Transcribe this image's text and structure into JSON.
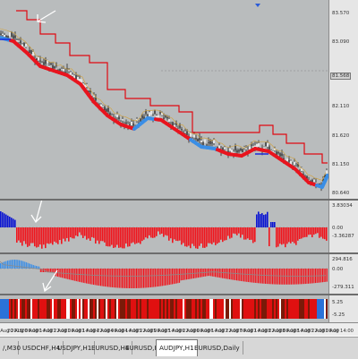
{
  "price_axis": {
    "labels": [
      "83.570",
      "83.090",
      "82.620",
      "82.110",
      "81.620",
      "81.150",
      "80.640"
    ],
    "current_price": "81.568"
  },
  "histogram_axis": {
    "labels": [
      "3.83034",
      "0.00",
      "-3.36287"
    ]
  },
  "macd_axis": {
    "labels": [
      "294.816",
      "0.00",
      "-279.311"
    ]
  },
  "strip_axis": {
    "labels": [
      "5.25",
      "-5.25"
    ]
  },
  "time_axis": {
    "labels": [
      "20 Aug 2015",
      "20 Aug 06:00",
      "20 Aug 14:00",
      "20 Aug 22:00",
      "21 Aug 06:00",
      "21 Aug 14:00",
      "21 Aug 22:00",
      "24 Aug 06:00",
      "24 Aug 14:00",
      "24 Aug 22:00",
      "25 Aug 06:00",
      "25 Aug 14:00",
      "25 Aug 22:00",
      "26 Aug 06:00",
      "26 Aug 14:00",
      "26 Aug 22:00",
      "27 Aug 06:00",
      "27 Aug 14:00",
      "27 Aug 22:00",
      "28 Aug 06:00",
      "28 Aug 14:00",
      "28 Aug 22:00",
      "31 Aug 06:00",
      "31 Aug 14:00"
    ]
  },
  "tabs": [
    {
      "label": "/,M30",
      "active": false
    },
    {
      "label": "USDCHF,H4",
      "active": false
    },
    {
      "label": "USDJPY,H1",
      "active": false
    },
    {
      "label": "EURUSD,H4",
      "active": false
    },
    {
      "label": "EURUSD,H1",
      "active": false
    },
    {
      "label": "AUDJPY,H1",
      "active": true
    },
    {
      "label": "EURUSD,Daily",
      "active": false
    }
  ],
  "colors": {
    "background": "#b9bcbd",
    "bull_line": "#3a8ee6",
    "bear_line": "#e8141e",
    "channel_line": "#e00a12",
    "hist_up": "#0a14d2",
    "hist_down": "#f0141c",
    "macd_up": "#3a8ee6",
    "macd_down": "#f0141c",
    "strip_red": "#e01010",
    "strip_dark": "#7a1a08",
    "strip_white": "#ffffff",
    "strip_blue": "#2a72d8"
  },
  "icons": {
    "arrow": "white-arrow-annotation",
    "scroll": "scroll-down-triangle-icon"
  }
}
